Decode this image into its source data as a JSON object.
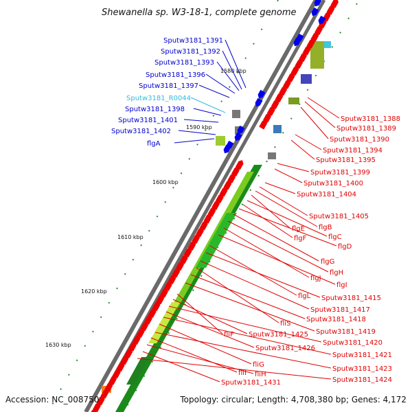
{
  "title": "Shewanella sp. W3-18-1, complete genome",
  "footer": {
    "accession": "Accession: NC_008750",
    "topology": "Topology: circular; Length: 4,708,380 bp; Genes: 4,172"
  },
  "colors": {
    "forward_label": "#0000cc",
    "reverse_label": "#e00000",
    "rna_label": "#33bbdd",
    "backbone": "#888888",
    "forward_gene": "#0000ee",
    "reverse_gene": "#ee0000",
    "tick": "#2a8a2a"
  },
  "icons": [
    "forward-arrow-icon",
    "reverse-arrow-icon"
  ],
  "kbp_labels": [
    "1580 kbp",
    "1590 kbp",
    "1600 kbp",
    "1610 kbp",
    "1620 kbp",
    "1630 kbp"
  ],
  "forward_labels": [
    "Sputw3181_1391",
    "Sputw3181_1392",
    "Sputw3181_1393",
    "Sputw3181_1396",
    "Sputw3181_1397",
    "Sputw3181_R0044",
    "Sputw3181_1398",
    "Sputw3181_1401",
    "Sputw3181_1402",
    "flgA"
  ],
  "reverse_labels": [
    "Sputw3181_1388",
    "Sputw3181_1389",
    "Sputw3181_1390",
    "Sputw3181_1394",
    "Sputw3181_1395",
    "Sputw3181_1399",
    "Sputw3181_1400",
    "Sputw3181_1404",
    "Sputw3181_1405",
    "flgB",
    "flgE",
    "flgC",
    "flgF",
    "flgD",
    "flgG",
    "flgH",
    "flgJ",
    "flgI",
    "flgL",
    "Sputw3181_1415",
    "Sputw3181_1417",
    "fliS",
    "Sputw3181_1418",
    "Sputw3181_1419",
    "fliF",
    "Sputw3181_1425",
    "Sputw3181_1420",
    "Sputw3181_1426",
    "Sputw3181_1421",
    "fliG",
    "Sputw3181_1423",
    "fliI",
    "fliH",
    "Sputw3181_1431",
    "Sputw3181_1424"
  ]
}
